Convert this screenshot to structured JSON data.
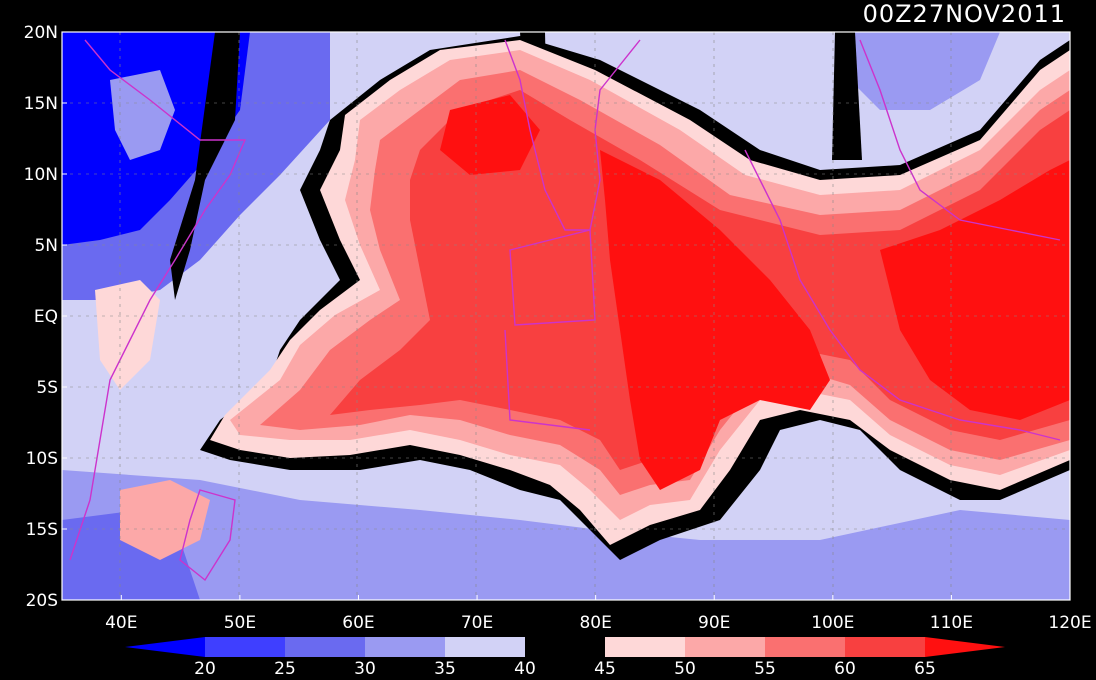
{
  "title": "00Z27NOV2011",
  "lat_axis": {
    "labels": [
      "20N",
      "15N",
      "10N",
      "5N",
      "EQ",
      "5S",
      "10S",
      "15S",
      "20S"
    ]
  },
  "lon_axis": {
    "labels": [
      "40E",
      "50E",
      "60E",
      "70E",
      "80E",
      "90E",
      "100E",
      "110E",
      "120E"
    ]
  },
  "colorbar": {
    "ticks": [
      "20",
      "25",
      "30",
      "35",
      "40",
      "45",
      "50",
      "55",
      "60",
      "65"
    ],
    "colors": [
      "#0000ff",
      "#3f3fff",
      "#6a6af0",
      "#9a9af2",
      "#d2d2f6",
      "#000000",
      "#fed8d8",
      "#fca8a8",
      "#fa7070",
      "#f84040",
      "#ff1010"
    ]
  },
  "palette": {
    "background": "#000000",
    "coast": "#cc33cc",
    "axis": "#ffffff",
    "grid": "#888888"
  }
}
